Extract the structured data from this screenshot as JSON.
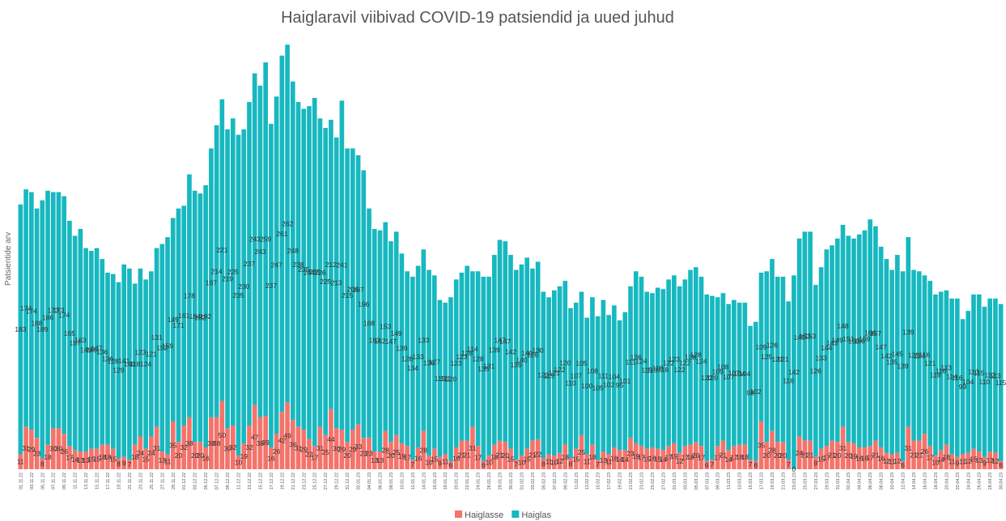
{
  "chart_data": {
    "type": "stacked_bar",
    "title": "Haiglaravil viibivad COVID-19 patsiendid ja uued juhud",
    "y_label": "Patsientide arv",
    "legend": "bottom",
    "ylim": [
      0,
      320
    ],
    "categories": [
      "01.11.22",
      null,
      "03.11.22",
      null,
      "05.11.22",
      null,
      "07.11.22",
      null,
      "09.11.22",
      null,
      "11.11.22",
      null,
      "13.11.22",
      null,
      "15.11.22",
      null,
      "17.11.22",
      null,
      "19.11.22",
      null,
      "21.11.22",
      null,
      "23.11.22",
      null,
      "25.11.22",
      null,
      "27.11.22",
      null,
      "29.11.22",
      null,
      "01.12.22",
      null,
      "03.12.22",
      null,
      "05.12.22",
      null,
      "07.12.22",
      null,
      "09.12.22",
      null,
      "11.12.22",
      null,
      "13.12.22",
      null,
      "15.12.22",
      null,
      "17.12.22",
      null,
      "19.12.22",
      null,
      "21.12.22",
      null,
      "23.12.22",
      null,
      "25.12.22",
      null,
      "27.12.22",
      null,
      "29.12.22",
      null,
      "31.12.22",
      null,
      "02.01.23",
      null,
      "04.01.23",
      null,
      "06.01.23",
      null,
      "08.01.23",
      null,
      "10.01.23",
      null,
      "12.01.23",
      null,
      "14.01.23",
      null,
      "16.01.23",
      null,
      "18.01.23",
      null,
      "20.01.23",
      null,
      "22.01.23",
      null,
      "24.01.23",
      null,
      "26.01.23",
      null,
      "28.01.23",
      null,
      "30.01.23",
      null,
      "01.02.23",
      null,
      "03.02.23",
      null,
      "05.02.23",
      null,
      "07.02.23",
      null,
      "09.02.23",
      null,
      "11.02.23",
      null,
      "13.02.23",
      null,
      "15.02.23",
      null,
      "17.02.23",
      null,
      "19.02.23",
      null,
      "21.02.23",
      null,
      "23.02.23",
      null,
      "25.02.23",
      null,
      "27.02.23",
      null,
      "01.03.23",
      null,
      "03.03.23",
      null,
      "05.03.23",
      null,
      "07.03.23",
      null,
      "09.03.23",
      null,
      "11.03.23",
      null,
      "13.03.23",
      null,
      "15.03.23",
      null,
      "17.03.23",
      null,
      "19.03.23",
      null,
      "21.03.23",
      null,
      "23.03.23",
      null,
      "25.03.23",
      null,
      "27.03.23",
      null,
      "29.03.23",
      null,
      "31.03.23",
      null,
      "02.04.23",
      null,
      "04.04.23",
      null,
      "06.04.23",
      null,
      "08.04.23",
      null,
      "10.04.23",
      null,
      "12.04.23",
      null,
      "14.04.23",
      null,
      "16.04.23",
      null,
      "18.04.23",
      null,
      "20.04.23",
      null,
      "22.04.23",
      null,
      "24.04.23",
      null,
      "26.04.23",
      null,
      "28.04.23",
      null,
      "30.04.23"
    ],
    "series": [
      {
        "name": "Haiglasse",
        "color": "#f4736b",
        "values": [
          11,
          31,
          29,
          23,
          8,
          18,
          30,
          30,
          26,
          17,
          14,
          13,
          13,
          15,
          15,
          18,
          18,
          15,
          8,
          9,
          7,
          18,
          24,
          15,
          24,
          31,
          13,
          11,
          35,
          20,
          32,
          38,
          20,
          20,
          16,
          38,
          38,
          50,
          30,
          32,
          10,
          19,
          32,
          47,
          38,
          39,
          16,
          26,
          42,
          49,
          36,
          31,
          29,
          22,
          17,
          31,
          25,
          44,
          30,
          29,
          20,
          29,
          33,
          23,
          23,
          13,
          13,
          28,
          20,
          25,
          19,
          17,
          7,
          16,
          28,
          10,
          15,
          9,
          11,
          6,
          16,
          21,
          21,
          31,
          17,
          6,
          10,
          18,
          21,
          20,
          15,
          7,
          10,
          15,
          21,
          22,
          8,
          11,
          10,
          12,
          18,
          8,
          15,
          25,
          11,
          18,
          7,
          13,
          11,
          16,
          14,
          14,
          23,
          19,
          17,
          15,
          16,
          15,
          14,
          17,
          19,
          12,
          17,
          18,
          20,
          17,
          6,
          7,
          17,
          21,
          14,
          17,
          18,
          18,
          7,
          6,
          35,
          20,
          28,
          20,
          20,
          7,
          0,
          24,
          21,
          21,
          9,
          15,
          17,
          21,
          20,
          31,
          20,
          19,
          16,
          16,
          17,
          21,
          16,
          12,
          11,
          12,
          6,
          31,
          21,
          21,
          26,
          17,
          10,
          14,
          18,
          11,
          9,
          11,
          12,
          15,
          13,
          9,
          13,
          12,
          6
        ]
      },
      {
        "name": "Haiglas",
        "color": "#17b8c0",
        "values": [
          183,
          174,
          174,
          168,
          189,
          186,
          173,
          173,
          174,
          165,
          157,
          163,
          149,
          145,
          147,
          136,
          126,
          128,
          129,
          141,
          140,
          118,
          123,
          124,
          121,
          131,
          152,
          159,
          149,
          171,
          161,
          178,
          184,
          182,
          192,
          197,
          214,
          221,
          219,
          225,
          235,
          230,
          237,
          243,
          243,
          259,
          237,
          247,
          261,
          262,
          248,
          238,
          235,
          244,
          255,
          226,
          225,
          212,
          213,
          241,
          215,
          206,
          197,
          196,
          168,
          163,
          162,
          153,
          147,
          149,
          139,
          128,
          134,
          133,
          133,
          136,
          127,
          115,
          111,
          120,
          123,
          123,
          128,
          114,
          128,
          135,
          131,
          139,
          147,
          147,
          142,
          139,
          140,
          140,
          126,
          130,
          122,
          115,
          121,
          122,
          120,
          110,
          107,
          105,
          100,
          108,
          105,
          111,
          102,
          104,
          95,
          101,
          111,
          126,
          124,
          115,
          113,
          118,
          118,
          122,
          123,
          122,
          122,
          128,
          128,
          124,
          122,
          120,
          109,
          108,
          107,
          107,
          104,
          104,
          98,
          102,
          109,
          125,
          126,
          121,
          121,
          116,
          142,
          145,
          153,
          153,
          126,
          133,
          144,
          143,
          149,
          148,
          151,
          150,
          156,
          159,
          166,
          157,
          147,
          142,
          135,
          145,
          139,
          139,
          125,
          124,
          116,
          121,
          118,
          116,
          113,
          114,
          116,
          99,
          104,
          113,
          115,
          110,
          112,
          113,
          115
        ]
      }
    ]
  }
}
